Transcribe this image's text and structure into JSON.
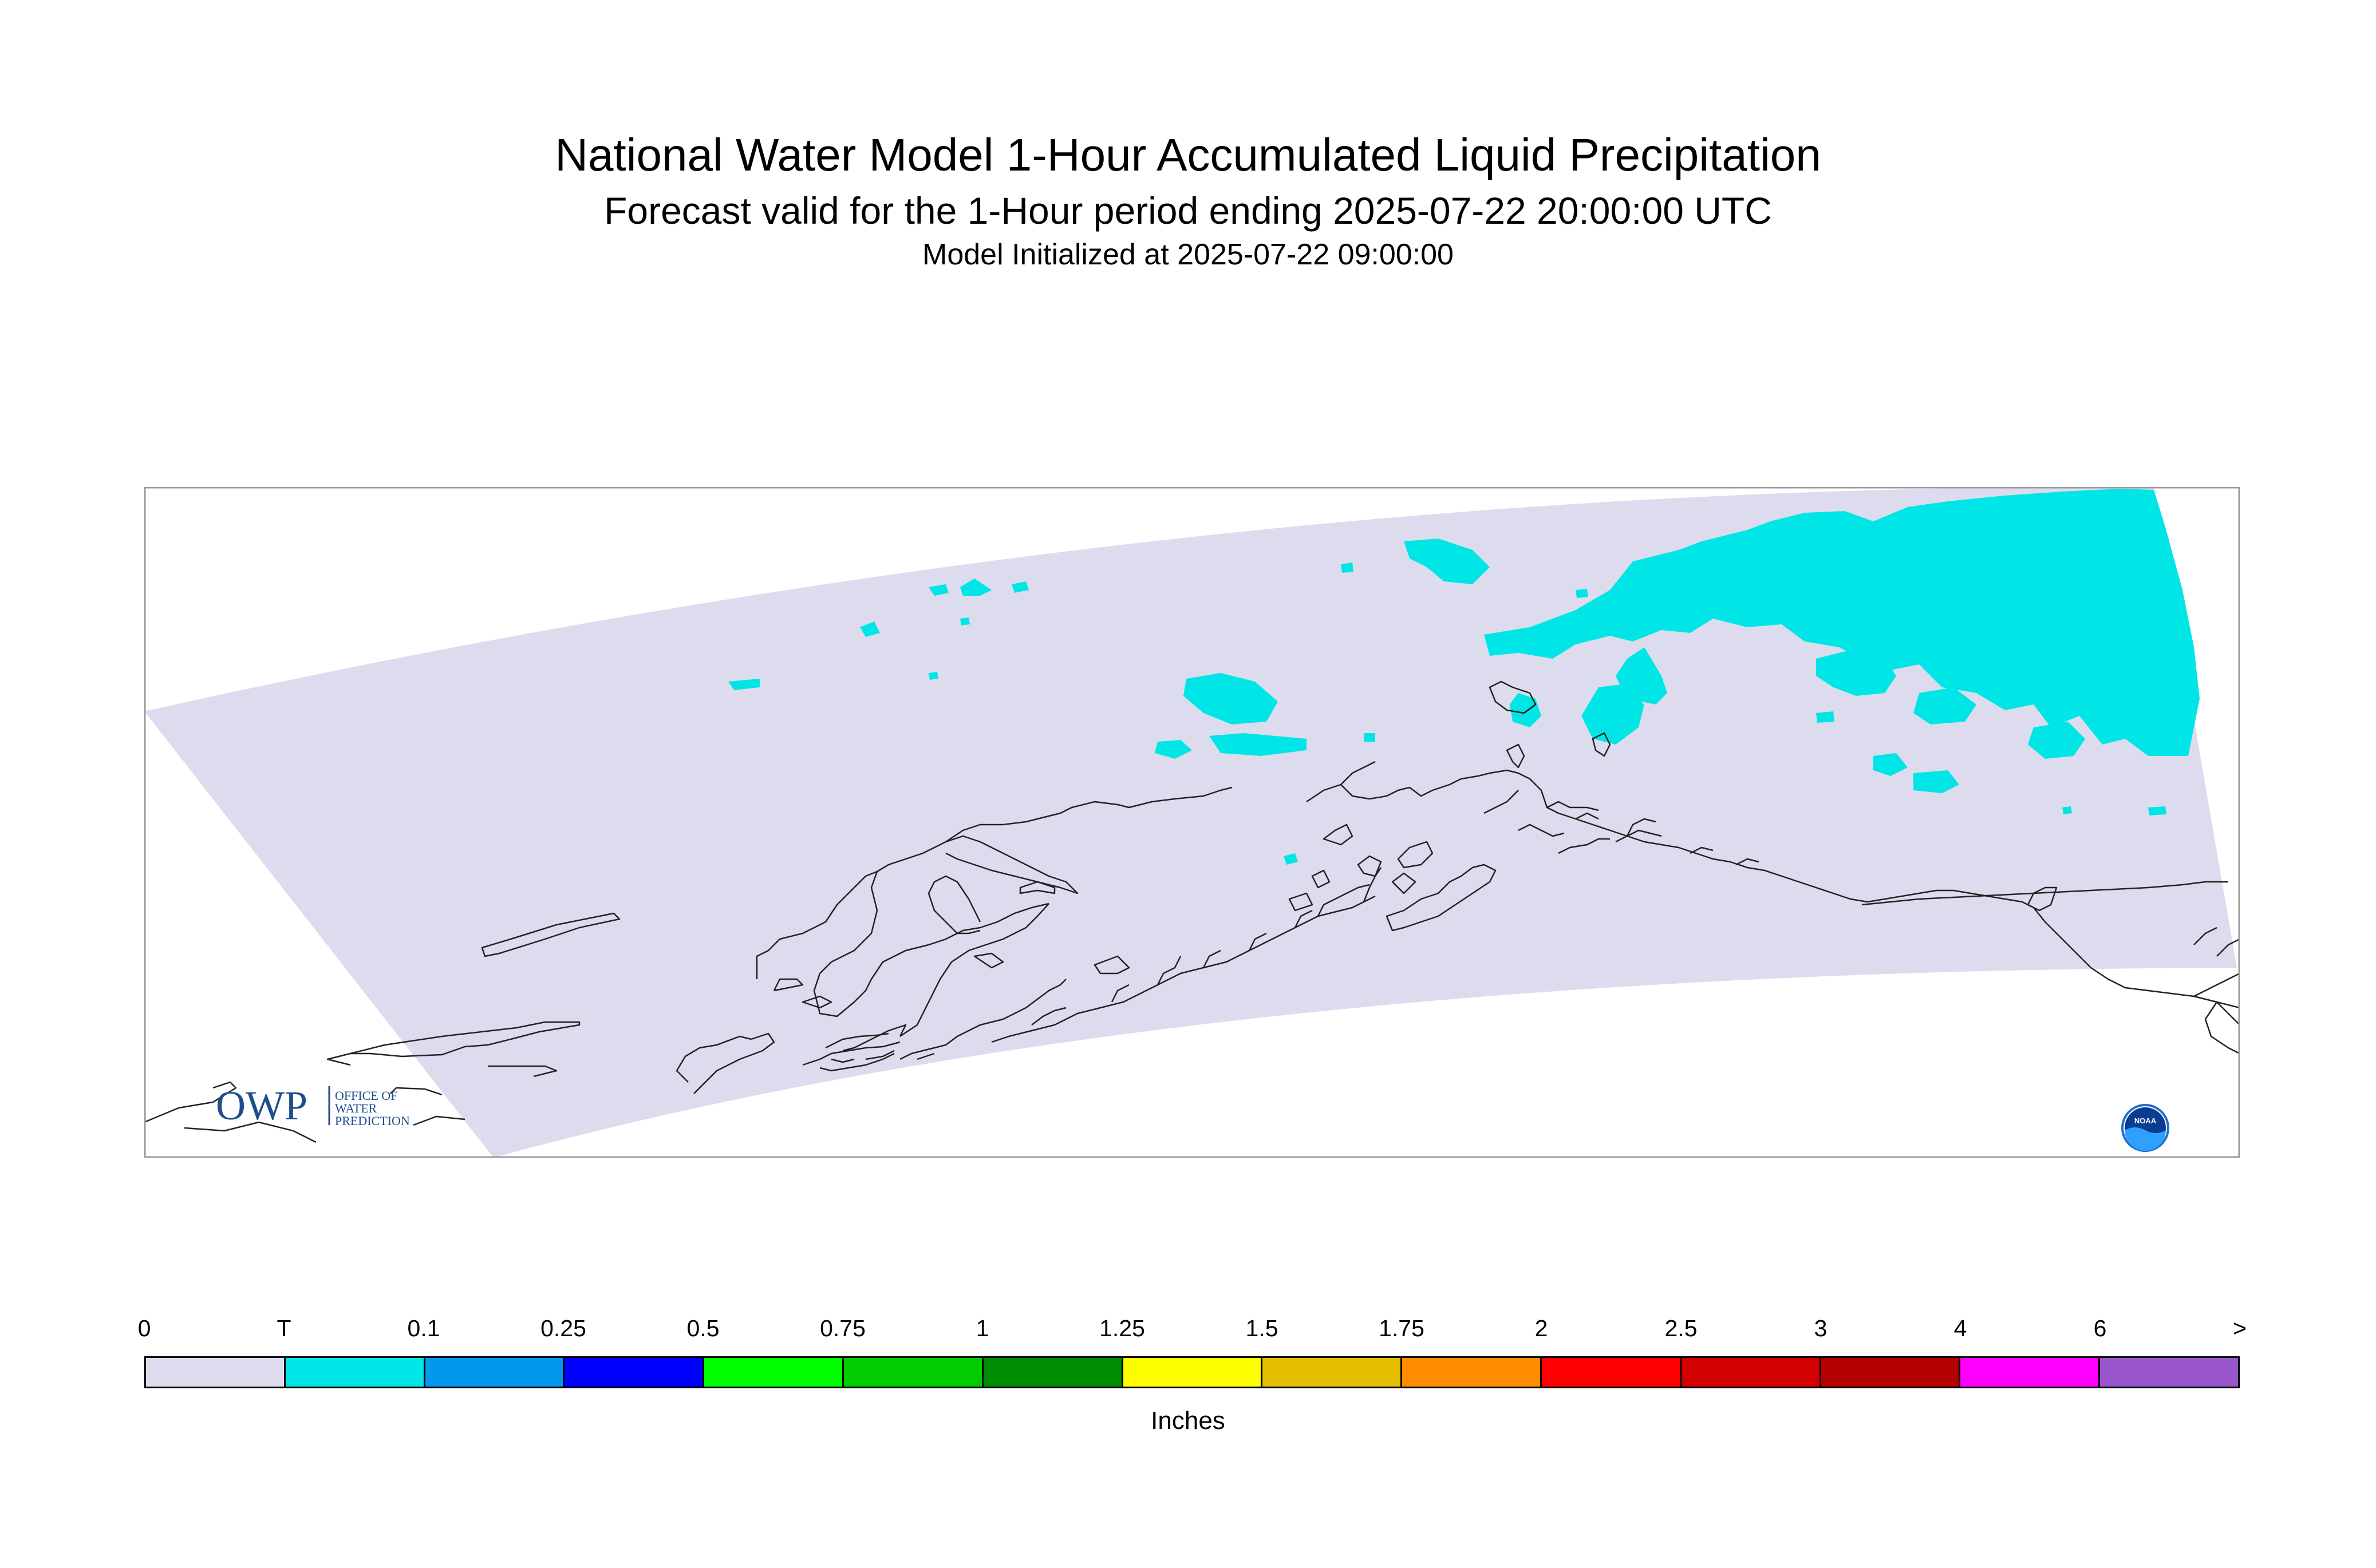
{
  "title": "National Water Model 1-Hour Accumulated Liquid Precipitation",
  "subtitle": "Forecast valid for the 1-Hour period ending 2025-07-22 20:00:00 UTC",
  "initialized": "Model Initialized at 2025-07-22 09:00:00",
  "logos": {
    "owp": {
      "mark": "OWP",
      "text_lines": [
        "OFFICE OF",
        "WATER",
        "PREDICTION"
      ]
    },
    "noaa": {
      "text": "NOAA"
    }
  },
  "map": {
    "domain_color": "#dcdcee",
    "coastline_color": "#222222",
    "precip_present_category": "T",
    "precip_color": "#00e5e5"
  },
  "colorbar": {
    "tick_labels": [
      "0",
      "T",
      "0.1",
      "0.25",
      "0.5",
      "0.75",
      "1",
      "1.25",
      "1.5",
      "1.75",
      "2",
      "2.5",
      "3",
      "4",
      "6",
      ">"
    ],
    "colors": [
      "#dcdcee",
      "#00e5e5",
      "#0099ee",
      "#0000ff",
      "#00ff00",
      "#00cc00",
      "#008c00",
      "#ffff00",
      "#e6be00",
      "#ff8c00",
      "#ff0000",
      "#d20000",
      "#b40000",
      "#ff00ff",
      "#9955cc"
    ],
    "units": "Inches"
  }
}
